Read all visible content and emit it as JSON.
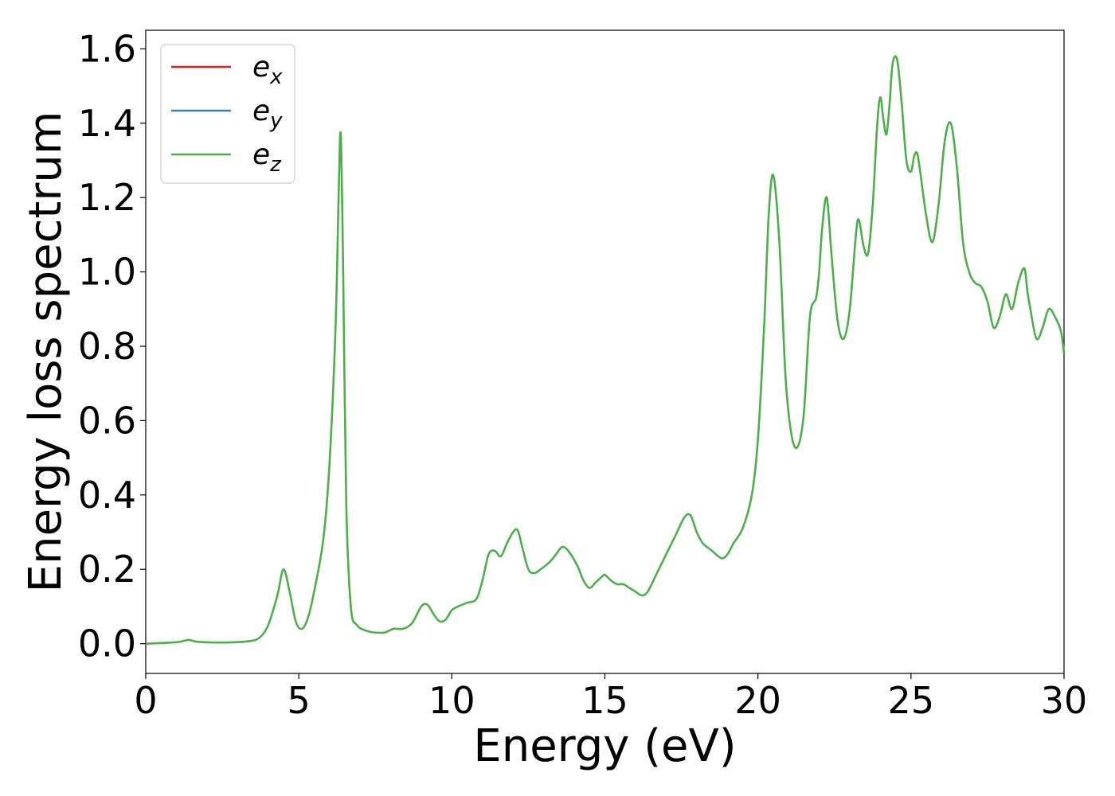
{
  "chart_data": {
    "type": "line",
    "xlabel": "Energy (eV)",
    "ylabel": "Energy loss spectrum",
    "xlim": [
      0,
      30
    ],
    "ylim": [
      -0.08,
      1.65
    ],
    "xticks": [
      0,
      5,
      10,
      15,
      20,
      25,
      30
    ],
    "xtick_labels": [
      "0",
      "5",
      "10",
      "15",
      "20",
      "25",
      "30"
    ],
    "yticks": [
      0.0,
      0.2,
      0.4,
      0.6,
      0.8,
      1.0,
      1.2,
      1.4,
      1.6
    ],
    "ytick_labels": [
      "0.0",
      "0.2",
      "0.4",
      "0.6",
      "0.8",
      "1.0",
      "1.2",
      "1.4",
      "1.6"
    ],
    "grid": false,
    "legend_position": "top-left",
    "legend": [
      {
        "base": "e",
        "sub": "x",
        "color": "#e41a1c"
      },
      {
        "base": "e",
        "sub": "y",
        "color": "#377eb8"
      },
      {
        "base": "e",
        "sub": "z",
        "color": "#4daf4a"
      }
    ],
    "x": [
      0,
      1.0,
      1.4,
      1.7,
      2.5,
      3.3,
      3.7,
      4.0,
      4.3,
      4.5,
      4.7,
      4.9,
      5.1,
      5.3,
      5.5,
      5.8,
      6.0,
      6.2,
      6.3,
      6.37,
      6.45,
      6.55,
      6.7,
      6.9,
      7.2,
      7.5,
      7.8,
      8.1,
      8.4,
      8.7,
      9.0,
      9.2,
      9.4,
      9.6,
      9.8,
      10.0,
      10.2,
      10.5,
      10.8,
      11.0,
      11.2,
      11.4,
      11.6,
      11.8,
      12.0,
      12.15,
      12.3,
      12.5,
      12.7,
      12.9,
      13.2,
      13.4,
      13.6,
      13.8,
      14.1,
      14.3,
      14.5,
      14.7,
      14.9,
      15.0,
      15.2,
      15.4,
      15.6,
      15.8,
      16.0,
      16.2,
      16.4,
      16.7,
      17.0,
      17.3,
      17.6,
      17.8,
      18.0,
      18.2,
      18.5,
      18.8,
      19.0,
      19.2,
      19.5,
      19.8,
      20.0,
      20.2,
      20.35,
      20.5,
      20.7,
      20.9,
      21.1,
      21.3,
      21.5,
      21.7,
      21.9,
      22.0,
      22.1,
      22.25,
      22.4,
      22.6,
      22.8,
      23.0,
      23.2,
      23.3,
      23.45,
      23.6,
      23.75,
      23.9,
      24.0,
      24.1,
      24.2,
      24.3,
      24.4,
      24.55,
      24.7,
      24.85,
      25.0,
      25.1,
      25.2,
      25.3,
      25.5,
      25.7,
      25.9,
      26.1,
      26.3,
      26.5,
      26.7,
      26.9,
      27.1,
      27.3,
      27.5,
      27.7,
      27.9,
      28.1,
      28.3,
      28.5,
      28.7,
      28.8,
      28.9,
      29.1,
      29.3,
      29.5,
      29.7,
      29.9,
      30.0
    ],
    "series": [
      {
        "name": "",
        "color": "#4daf4a",
        "values": [
          0.0,
          0.004,
          0.01,
          0.005,
          0.003,
          0.006,
          0.015,
          0.05,
          0.13,
          0.2,
          0.14,
          0.06,
          0.04,
          0.07,
          0.14,
          0.28,
          0.48,
          0.85,
          1.2,
          1.37,
          1.0,
          0.38,
          0.1,
          0.05,
          0.035,
          0.03,
          0.03,
          0.04,
          0.04,
          0.055,
          0.1,
          0.105,
          0.08,
          0.06,
          0.065,
          0.09,
          0.1,
          0.11,
          0.12,
          0.17,
          0.24,
          0.25,
          0.235,
          0.27,
          0.3,
          0.305,
          0.26,
          0.2,
          0.19,
          0.2,
          0.22,
          0.24,
          0.26,
          0.25,
          0.21,
          0.17,
          0.15,
          0.165,
          0.18,
          0.185,
          0.17,
          0.16,
          0.16,
          0.15,
          0.14,
          0.13,
          0.14,
          0.19,
          0.24,
          0.29,
          0.34,
          0.345,
          0.3,
          0.27,
          0.25,
          0.23,
          0.24,
          0.27,
          0.31,
          0.4,
          0.55,
          0.85,
          1.15,
          1.26,
          1.08,
          0.72,
          0.56,
          0.53,
          0.62,
          0.88,
          0.93,
          1.0,
          1.12,
          1.2,
          1.05,
          0.87,
          0.82,
          0.9,
          1.1,
          1.14,
          1.07,
          1.05,
          1.18,
          1.4,
          1.47,
          1.41,
          1.37,
          1.45,
          1.56,
          1.57,
          1.45,
          1.3,
          1.27,
          1.31,
          1.32,
          1.27,
          1.15,
          1.08,
          1.18,
          1.35,
          1.4,
          1.28,
          1.08,
          1.0,
          0.97,
          0.96,
          0.92,
          0.85,
          0.88,
          0.94,
          0.9,
          0.97,
          1.01,
          0.95,
          0.9,
          0.82,
          0.85,
          0.9,
          0.88,
          0.84,
          0.78
        ]
      }
    ]
  }
}
